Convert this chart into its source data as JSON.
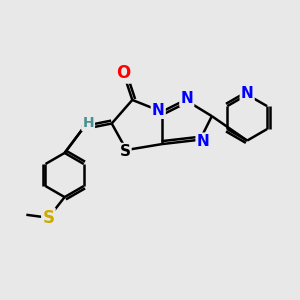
{
  "bg_color": "#e8e8e8",
  "atom_colors": {
    "C": "#000000",
    "H": "#4a9090",
    "N": "#0000ff",
    "O": "#ff0000",
    "S": "#ccaa00",
    "S_ring": "#000000"
  },
  "bond_color": "#000000",
  "bond_width": 1.8,
  "dbo": 0.09
}
